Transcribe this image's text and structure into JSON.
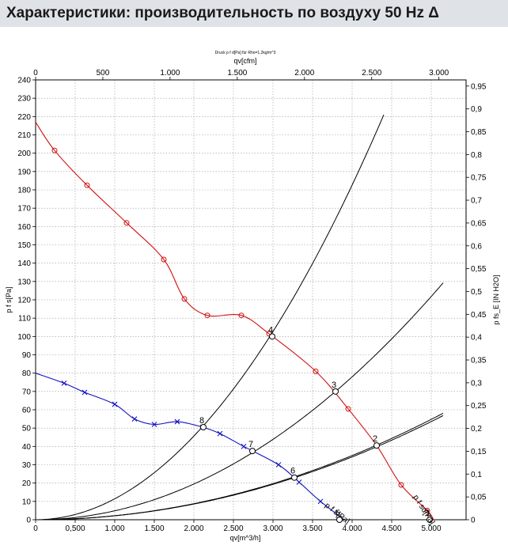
{
  "header": {
    "title": "Характеристики: производительность по воздуху 50 Hz Δ"
  },
  "chart_data": {
    "type": "line",
    "note_top": "Druck p f d[Pa] für Rho=1,2kg/m^3",
    "x_top_label": "qv[cfm]",
    "x_top_ticks": [
      "0",
      "500",
      "1.000",
      "1.500",
      "2.000",
      "2.500",
      "3.000"
    ],
    "x_top_tick_values": [
      0,
      500,
      1000,
      1500,
      2000,
      2500,
      3000
    ],
    "xlabel": "qv[m^3/h]",
    "x_ticks": [
      "0",
      "0,500",
      "1.000",
      "1.500",
      "2.000",
      "2.500",
      "3.000",
      "3.500",
      "4.000",
      "4.500",
      "5.000"
    ],
    "x_tick_values": [
      0,
      500,
      1000,
      1500,
      2000,
      2500,
      3000,
      3500,
      4000,
      4500,
      5000
    ],
    "xlim": [
      0,
      5150
    ],
    "ylabel": "p f s[Pa]",
    "y_ticks": [
      "0",
      "10",
      "20",
      "30",
      "40",
      "50",
      "60",
      "70",
      "80",
      "90",
      "100",
      "110",
      "120",
      "130",
      "140",
      "150",
      "160",
      "170",
      "180",
      "190",
      "200",
      "210",
      "220",
      "230",
      "240"
    ],
    "ylim": [
      0,
      240
    ],
    "y2label": "p fs_E [IN H2O]",
    "y2_ticks": [
      "0",
      "0,05",
      "0,1",
      "0,15",
      "0,2",
      "0,25",
      "0,3",
      "0,35",
      "0,4",
      "0,45",
      "0,5",
      "0,55",
      "0,6",
      "0,65",
      "0,7",
      "0,75",
      "0,8",
      "0,85",
      "0,9",
      "0,95"
    ],
    "y2lim": [
      0,
      0.963
    ],
    "grid": true,
    "series": [
      {
        "name": "p fsd[Pa]",
        "color": "#d01010",
        "marker": "circle",
        "x": [
          0,
          240,
          650,
          1150,
          1620,
          1880,
          2170,
          2600,
          2950,
          3540,
          3950,
          4310,
          4620,
          4950,
          5030
        ],
        "y": [
          217,
          201.5,
          182.5,
          162,
          142,
          120.5,
          111.5,
          111.5,
          101.5,
          81,
          60.5,
          40.5,
          19,
          5,
          0
        ]
      },
      {
        "name": "p fs[Pa]",
        "color": "#1010c0",
        "marker": "x",
        "x": [
          0,
          360,
          620,
          1000,
          1250,
          1500,
          1790,
          2110,
          2330,
          2630,
          3070,
          3330,
          3600,
          3900
        ],
        "y": [
          80,
          74.5,
          69.5,
          63,
          55,
          52,
          53.5,
          50.5,
          47,
          40,
          30,
          20.5,
          10,
          0
        ]
      },
      {
        "name": "",
        "color": "#000000",
        "marker": "none",
        "x": [
          0,
          1000,
          2000,
          2500,
          2960,
          3400,
          4000,
          4470
        ],
        "y": [
          0,
          11.4,
          45.6,
          71.3,
          100,
          132,
          183,
          228
        ]
      },
      {
        "name": "",
        "color": "#000000",
        "marker": "none",
        "x": [
          0,
          1000,
          2000,
          2740,
          3500,
          4000,
          4780
        ],
        "y": [
          0,
          5.1,
          20.4,
          38,
          62.5,
          81.5,
          117
        ]
      },
      {
        "name": "",
        "color": "#000000",
        "marker": "none",
        "x": [
          0,
          1000,
          2000,
          3000,
          3290,
          4000,
          4820
        ],
        "y": [
          0,
          3.1,
          12.5,
          28.1,
          23,
          50,
          73
        ]
      },
      {
        "name": "",
        "color": "#000000",
        "marker": "none",
        "x": [
          0,
          1000,
          2000,
          3000,
          4000,
          4300,
          5180
        ],
        "y": [
          0,
          2.2,
          8.7,
          19.6,
          34.8,
          40.5,
          57.5
        ]
      }
    ],
    "operating_points": [
      {
        "label": "1",
        "x": 4980,
        "y": 0
      },
      {
        "label": "2",
        "x": 4310,
        "y": 40.5
      },
      {
        "label": "3",
        "x": 3790,
        "y": 70
      },
      {
        "label": "4",
        "x": 2990,
        "y": 100
      },
      {
        "label": "5",
        "x": 3840,
        "y": 0
      },
      {
        "label": "6",
        "x": 3270,
        "y": 23
      },
      {
        "label": "7",
        "x": 2740,
        "y": 37.5
      },
      {
        "label": "8",
        "x": 2120,
        "y": 50.5
      }
    ],
    "curve_labels": [
      {
        "text": "p f sd[Pa]",
        "color": "#d01010"
      },
      {
        "text": "p f s[Pa]",
        "color": "#1010c0"
      }
    ]
  }
}
